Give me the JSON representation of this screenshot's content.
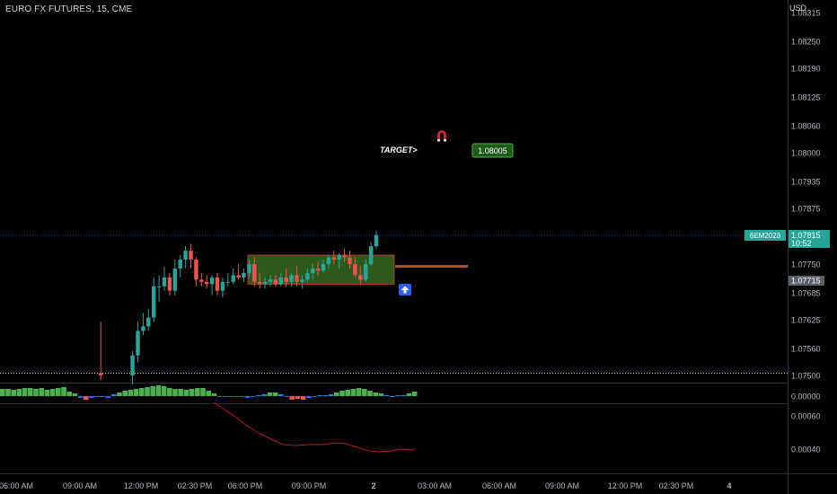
{
  "header": {
    "symbol_line": "EURO FX FUTURES, 15, CME",
    "currency": "USD"
  },
  "price_axis": {
    "ticks": [
      "1.08315",
      "1.08250",
      "1.08190",
      "1.08125",
      "1.08060",
      "1.08000",
      "1.07935",
      "1.07875",
      "1.07750",
      "1.07685",
      "1.07625",
      "1.07560",
      "1.07500"
    ],
    "ticks_values": [
      1.08315,
      1.0825,
      1.0819,
      1.08125,
      1.0806,
      1.08,
      1.07935,
      1.07875,
      1.0775,
      1.07685,
      1.07625,
      1.0756,
      1.075
    ],
    "range": [
      1.0747,
      1.0833
    ]
  },
  "last_price": {
    "symbol": "6EM2023",
    "price": "1.07815",
    "countdown": "10:52",
    "value": 1.07815,
    "color": "#26a69a"
  },
  "level_label": {
    "price": "1.07715",
    "value": 1.07715
  },
  "annotations": {
    "target_label": "TARGET>",
    "target_price": "1.08005",
    "target_value": 1.08005,
    "magnet_icon": "magnet-icon",
    "arrow_icon": "arrow-up-icon"
  },
  "zone": {
    "top": 1.0777,
    "bottom": 1.07705,
    "fill": "#2d5a1b",
    "border": "#c0392b"
  },
  "level_line": {
    "value": 1.07745,
    "color": "#a0522d"
  },
  "dotted_level": {
    "value": 1.07505,
    "color": "#e6e600"
  },
  "indicator1": {
    "zero_label": "0.00000"
  },
  "indicator2": {
    "ticks": [
      "0.00060",
      "0.00040"
    ]
  },
  "time_axis": {
    "labels": [
      "06:00 AM",
      "09:00 AM",
      "12:00 PM",
      "02:30 PM",
      "06:00 PM",
      "09:00 PM",
      "2",
      "03:00 AM",
      "06:00 AM",
      "09:00 AM",
      "12:00 PM",
      "02:30 PM",
      "4"
    ]
  },
  "chart_data": {
    "type": "candlestick",
    "title": "EURO FX FUTURES, 15, CME",
    "ylim": [
      1.0747,
      1.0833
    ],
    "candles": [
      [
        1.07505,
        1.07505,
        1.07505,
        1.07505
      ],
      [
        1.07505,
        1.07505,
        1.07505,
        1.07505
      ],
      [
        1.07505,
        1.07505,
        1.07505,
        1.07505
      ],
      [
        1.07505,
        1.07505,
        1.07505,
        1.07505
      ],
      [
        1.07505,
        1.07505,
        1.07505,
        1.07505
      ],
      [
        1.07505,
        1.07505,
        1.07505,
        1.07505
      ],
      [
        1.07505,
        1.07505,
        1.07505,
        1.07505
      ],
      [
        1.07505,
        1.07505,
        1.07505,
        1.07505
      ],
      [
        1.07505,
        1.07505,
        1.07505,
        1.07505
      ],
      [
        1.07505,
        1.07505,
        1.07505,
        1.07505
      ],
      [
        1.07505,
        1.07505,
        1.07505,
        1.07505
      ],
      [
        1.07505,
        1.07505,
        1.07505,
        1.07505
      ],
      [
        1.07505,
        1.07505,
        1.07505,
        1.07505
      ],
      [
        1.07505,
        1.07505,
        1.07505,
        1.07505
      ],
      [
        1.07505,
        1.07505,
        1.07505,
        1.07505
      ],
      [
        1.07505,
        1.07505,
        1.07505,
        1.07505
      ],
      [
        1.07505,
        1.07505,
        1.07505,
        1.07505
      ],
      [
        1.07505,
        1.07505,
        1.07505,
        1.07505
      ],
      [
        1.07505,
        1.0762,
        1.0749,
        1.075
      ],
      [
        1.07505,
        1.07505,
        1.07505,
        1.07505
      ],
      [
        1.07505,
        1.07505,
        1.07505,
        1.07505
      ],
      [
        1.07505,
        1.07505,
        1.07505,
        1.07505
      ],
      [
        1.07505,
        1.07505,
        1.07505,
        1.07505
      ],
      [
        1.07505,
        1.07505,
        1.07505,
        1.07505
      ],
      [
        1.075,
        1.07555,
        1.0748,
        1.07545
      ],
      [
        1.07545,
        1.0762,
        1.0753,
        1.076
      ],
      [
        1.076,
        1.0764,
        1.0759,
        1.0761
      ],
      [
        1.0761,
        1.0765,
        1.076,
        1.0763
      ],
      [
        1.0763,
        1.0772,
        1.0762,
        1.077
      ],
      [
        1.077,
        1.07725,
        1.07665,
        1.077
      ],
      [
        1.077,
        1.07745,
        1.0769,
        1.0772
      ],
      [
        1.0772,
        1.0773,
        1.0768,
        1.0769
      ],
      [
        1.0769,
        1.0776,
        1.0768,
        1.0774
      ],
      [
        1.0774,
        1.0777,
        1.0772,
        1.0776
      ],
      [
        1.0776,
        1.0779,
        1.0774,
        1.0778
      ],
      [
        1.0778,
        1.07795,
        1.0774,
        1.0776
      ],
      [
        1.0776,
        1.07765,
        1.077,
        1.07715
      ],
      [
        1.07715,
        1.0773,
        1.077,
        1.0771
      ],
      [
        1.0771,
        1.07725,
        1.07695,
        1.07705
      ],
      [
        1.07705,
        1.07725,
        1.0768,
        1.0772
      ],
      [
        1.0772,
        1.0773,
        1.0768,
        1.0769
      ],
      [
        1.0769,
        1.0772,
        1.07675,
        1.0771
      ],
      [
        1.0771,
        1.0773,
        1.077,
        1.0771
      ],
      [
        1.0771,
        1.0774,
        1.07705,
        1.07725
      ],
      [
        1.07725,
        1.0775,
        1.07715,
        1.0772
      ],
      [
        1.0772,
        1.0774,
        1.0771,
        1.0773
      ],
      [
        1.0773,
        1.0776,
        1.0772,
        1.0775
      ],
      [
        1.0775,
        1.07765,
        1.077,
        1.0771
      ],
      [
        1.0771,
        1.0773,
        1.07695,
        1.07705
      ],
      [
        1.07705,
        1.0772,
        1.07695,
        1.0771
      ],
      [
        1.0771,
        1.07725,
        1.077,
        1.07715
      ],
      [
        1.07715,
        1.07725,
        1.077,
        1.07705
      ],
      [
        1.07705,
        1.0773,
        1.077,
        1.0772
      ],
      [
        1.0772,
        1.0774,
        1.077,
        1.0771
      ],
      [
        1.0771,
        1.0773,
        1.077,
        1.07725
      ],
      [
        1.07725,
        1.07745,
        1.077,
        1.0771
      ],
      [
        1.0771,
        1.07725,
        1.07695,
        1.07715
      ],
      [
        1.07715,
        1.0774,
        1.0771,
        1.0773
      ],
      [
        1.0773,
        1.0775,
        1.07715,
        1.0774
      ],
      [
        1.0774,
        1.07755,
        1.07725,
        1.07735
      ],
      [
        1.07735,
        1.0776,
        1.0773,
        1.0775
      ],
      [
        1.0775,
        1.0777,
        1.0774,
        1.07765
      ],
      [
        1.07765,
        1.0778,
        1.0775,
        1.0776
      ],
      [
        1.0776,
        1.07775,
        1.0774,
        1.0777
      ],
      [
        1.0777,
        1.07785,
        1.07755,
        1.07765
      ],
      [
        1.07765,
        1.0778,
        1.0774,
        1.0775
      ],
      [
        1.0775,
        1.07765,
        1.0772,
        1.07725
      ],
      [
        1.07725,
        1.07745,
        1.07705,
        1.07715
      ],
      [
        1.07715,
        1.0776,
        1.0771,
        1.0775
      ],
      [
        1.0775,
        1.078,
        1.07745,
        1.0779
      ],
      [
        1.0779,
        1.07825,
        1.07785,
        1.07815
      ]
    ]
  }
}
